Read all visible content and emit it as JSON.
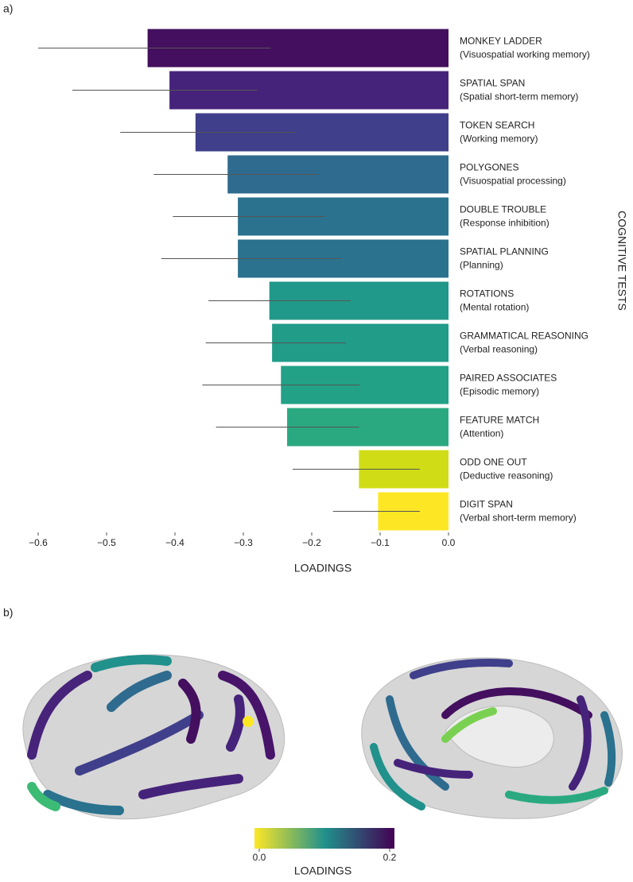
{
  "chart_data": {
    "type": "bar",
    "orientation": "horizontal",
    "panel_label": "a)",
    "xlabel": "LOADINGS",
    "ylabel": "COGNITIVE TESTS",
    "categories": [
      "MONKEY LADDER",
      "SPATIAL SPAN",
      "TOKEN SEARCH",
      "POLYGONES",
      "DOUBLE TROUBLE",
      "SPATIAL PLANNING",
      "ROTATIONS",
      "GRAMMATICAL REASONING",
      "PAIRED ASSOCIATES",
      "FEATURE MATCH",
      "ODD ONE OUT",
      "DIGIT SPAN"
    ],
    "descriptions": [
      "(Visuospatial working memory)",
      "(Spatial short-term memory)",
      "(Working memory)",
      "(Visuospatial processing)",
      "(Response inhibition)",
      "(Planning)",
      "(Mental rotation)",
      "(Verbal reasoning)",
      "(Episodic memory)",
      "(Attention)",
      "(Deductive reasoning)",
      "(Verbal short-term memory)"
    ],
    "values": [
      -0.44,
      -0.408,
      -0.37,
      -0.323,
      -0.308,
      -0.308,
      -0.262,
      -0.258,
      -0.245,
      -0.236,
      -0.131,
      -0.103
    ],
    "intervals": [
      [
        -0.6,
        -0.26
      ],
      [
        -0.55,
        -0.28
      ],
      [
        -0.48,
        -0.224
      ],
      [
        -0.431,
        -0.192
      ],
      [
        -0.403,
        -0.18
      ],
      [
        -0.42,
        -0.156
      ],
      [
        -0.351,
        -0.143
      ],
      [
        -0.355,
        -0.15
      ],
      [
        -0.36,
        -0.13
      ],
      [
        -0.34,
        -0.131
      ],
      [
        -0.228,
        -0.042
      ],
      [
        -0.169,
        -0.042
      ]
    ],
    "colors": [
      "#440f5e",
      "#46237a",
      "#3f3f8b",
      "#2f6b8e",
      "#2a728e",
      "#2a728e",
      "#21998a",
      "#209c89",
      "#22a186",
      "#2aa981",
      "#d0dd16",
      "#fde725"
    ],
    "xlim": [
      -0.6,
      0.0
    ],
    "xticks": [
      {
        "value": -0.6,
        "label": "−0.6"
      },
      {
        "value": -0.5,
        "label": "−0.5"
      },
      {
        "value": -0.4,
        "label": "−0.4"
      },
      {
        "value": -0.3,
        "label": "−0.3"
      },
      {
        "value": -0.2,
        "label": "−0.2"
      },
      {
        "value": -0.1,
        "label": "−0.1"
      },
      {
        "value": 0,
        "label": "0.0"
      }
    ]
  },
  "brain_figure": {
    "panel_label": "b)",
    "colorbar": {
      "label": "LOADINGS",
      "lim": [
        0,
        0.2
      ],
      "colors": [
        "#fde725",
        "#21918c",
        "#440154"
      ],
      "ticks": [
        {
          "value": 0,
          "label": "0.0"
        },
        {
          "value": 0.2,
          "label": "0.2"
        }
      ]
    }
  }
}
